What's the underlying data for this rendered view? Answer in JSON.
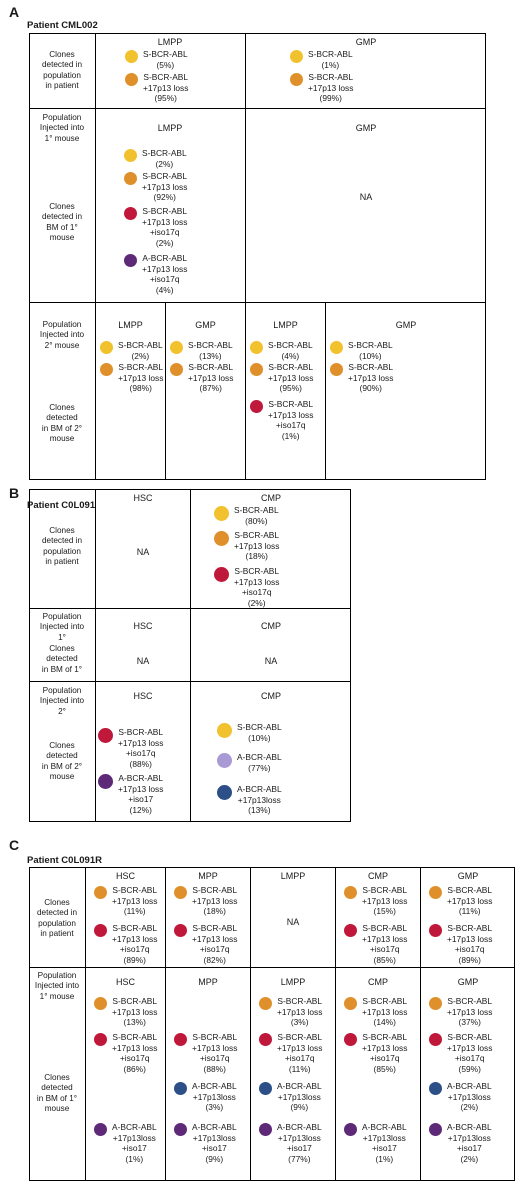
{
  "colors": {
    "S-BCR-ABL": "#f2c12e",
    "S-BCR-ABL+17p13": "#e0902a",
    "S-BCR-ABL+17p13+iso17q": "#c0183a",
    "A-BCR-ABL+17p13+iso17q": "#5e2a78",
    "A-BCR-ABL": "#a99ad6",
    "A-BCR-ABL+17p13": "#2d4f88"
  },
  "panelA": {
    "letter": "A",
    "title": "Patient CML002",
    "row_labels": {
      "clones_patient": [
        "Clones",
        "detected in",
        "population",
        "in patient"
      ],
      "injected_1": [
        "Population",
        "Injected into",
        "1° mouse"
      ],
      "clones_1": [
        "Clones",
        "detected in",
        "BM of 1°",
        "mouse"
      ],
      "injected_2": [
        "Population",
        "Injected into",
        "2° mouse"
      ],
      "clones_2": [
        "Clones",
        "detected",
        "in BM of 2°",
        "mouse"
      ]
    },
    "patient": {
      "lmpp": {
        "label": "LMPP",
        "clones": [
          {
            "color": "S-BCR-ABL",
            "lines": [
              "S-BCR-ABL",
              "(5%)"
            ]
          },
          {
            "color": "S-BCR-ABL+17p13",
            "lines": [
              "S-BCR-ABL",
              "+17p13 loss",
              "(95%)"
            ]
          }
        ]
      },
      "gmp": {
        "label": "GMP",
        "clones": [
          {
            "color": "S-BCR-ABL",
            "lines": [
              "S-BCR-ABL",
              "(1%)"
            ]
          },
          {
            "color": "S-BCR-ABL+17p13",
            "lines": [
              "S-BCR-ABL",
              "+17p13 loss",
              "(99%)"
            ]
          }
        ]
      }
    },
    "mouse1": {
      "lmpp": {
        "label": "LMPP",
        "clones": [
          {
            "color": "S-BCR-ABL",
            "lines": [
              "S-BCR-ABL",
              "(2%)"
            ]
          },
          {
            "color": "S-BCR-ABL+17p13",
            "lines": [
              "S-BCR-ABL",
              "+17p13 loss",
              "(92%)"
            ]
          },
          {
            "color": "S-BCR-ABL+17p13+iso17q",
            "lines": [
              "S-BCR-ABL",
              "+17p13 loss",
              "+iso17q",
              "(2%)"
            ]
          },
          {
            "color": "A-BCR-ABL+17p13+iso17q",
            "lines": [
              "A-BCR-ABL",
              "+17p13 loss",
              "+iso17q",
              "(4%)"
            ]
          }
        ]
      },
      "gmp": {
        "label": "GMP",
        "na": "NA"
      }
    },
    "mouse2": [
      {
        "label": "LMPP",
        "clones": [
          {
            "color": "S-BCR-ABL",
            "lines": [
              "S-BCR-ABL",
              "(2%)"
            ]
          },
          {
            "color": "S-BCR-ABL+17p13",
            "lines": [
              "S-BCR-ABL",
              "+17p13 loss",
              "(98%)"
            ]
          }
        ]
      },
      {
        "label": "GMP",
        "clones": [
          {
            "color": "S-BCR-ABL",
            "lines": [
              "S-BCR-ABL",
              "(13%)"
            ]
          },
          {
            "color": "S-BCR-ABL+17p13",
            "lines": [
              "S-BCR-ABL",
              "+17p13 loss",
              "(87%)"
            ]
          }
        ]
      },
      {
        "label": "LMPP",
        "clones": [
          {
            "color": "S-BCR-ABL",
            "lines": [
              "S-BCR-ABL",
              "(4%)"
            ]
          },
          {
            "color": "S-BCR-ABL+17p13",
            "lines": [
              "S-BCR-ABL",
              "+17p13 loss",
              "(95%)"
            ]
          },
          {
            "color": "S-BCR-ABL+17p13+iso17q",
            "lines": [
              "S-BCR-ABL",
              "+17p13 loss",
              "+iso17q",
              "(1%)"
            ]
          }
        ]
      },
      {
        "label": "GMP",
        "clones": [
          {
            "color": "S-BCR-ABL",
            "lines": [
              "S-BCR-ABL",
              "(10%)"
            ]
          },
          {
            "color": "S-BCR-ABL+17p13",
            "lines": [
              "S-BCR-ABL",
              "+17p13 loss",
              "(90%)"
            ]
          }
        ]
      }
    ]
  },
  "panelB": {
    "letter": "B",
    "title": "Patient C0L091",
    "row_labels": {
      "clones_patient": [
        "Clones",
        "detected in",
        "population",
        "in patient"
      ],
      "injected_1": [
        "Population",
        "Injected into",
        "1°"
      ],
      "clones_1": [
        "Clones",
        "detected",
        "in BM of 1°"
      ],
      "injected_2": [
        "Population",
        "Injected into",
        "2°"
      ],
      "clones_2": [
        "Clones",
        "detected",
        "in BM of 2°",
        "mouse"
      ]
    },
    "patient": {
      "hsc": {
        "label": "HSC",
        "na": "NA"
      },
      "cmp": {
        "label": "CMP",
        "clones": [
          {
            "color": "S-BCR-ABL",
            "lines": [
              "S-BCR-ABL",
              "(80%)"
            ]
          },
          {
            "color": "S-BCR-ABL+17p13",
            "lines": [
              "S-BCR-ABL",
              "+17p13 loss",
              "(18%)"
            ]
          },
          {
            "color": "S-BCR-ABL+17p13+iso17q",
            "lines": [
              "S-BCR-ABL",
              "+17p13 loss",
              "+iso17q",
              "(2%)"
            ]
          }
        ]
      }
    },
    "mouse1": {
      "hsc": {
        "label": "HSC",
        "na": "NA"
      },
      "cmp": {
        "label": "CMP",
        "na": "NA"
      }
    },
    "mouse2": {
      "hsc": {
        "label": "HSC",
        "clones": [
          {
            "color": "S-BCR-ABL+17p13+iso17q",
            "lines": [
              "S-BCR-ABL",
              "+17p13 loss",
              "+iso17q",
              "(88%)"
            ]
          },
          {
            "color": "A-BCR-ABL+17p13+iso17q",
            "lines": [
              "A-BCR-ABL",
              "+17p13 loss",
              "+iso17",
              "(12%)"
            ]
          }
        ]
      },
      "cmp": {
        "label": "CMP",
        "clones": [
          {
            "color": "S-BCR-ABL",
            "lines": [
              "S-BCR-ABL",
              "(10%)"
            ]
          },
          {
            "color": "A-BCR-ABL",
            "lines": [
              "A-BCR-ABL",
              "(77%)"
            ]
          },
          {
            "color": "A-BCR-ABL+17p13",
            "lines": [
              "A-BCR-ABL",
              "+17p13loss",
              "(13%)"
            ]
          }
        ]
      }
    }
  },
  "panelC": {
    "letter": "C",
    "title": "Patient C0L091R",
    "row_labels": {
      "clones_patient": [
        "Clones",
        "detected in",
        "population",
        "in patient"
      ],
      "injected_1": [
        "Population",
        "Injected into",
        "1° mouse"
      ],
      "clones_1": [
        "Clones",
        "detected",
        "in BM of 1°",
        "mouse"
      ]
    },
    "patient": [
      {
        "label": "HSC",
        "clones": [
          {
            "color": "S-BCR-ABL+17p13",
            "lines": [
              "S-BCR-ABL",
              "+17p13 loss",
              "(11%)"
            ]
          },
          {
            "color": "S-BCR-ABL+17p13+iso17q",
            "lines": [
              "S-BCR-ABL",
              "+17p13 loss",
              "+iso17q",
              "(89%)"
            ]
          }
        ]
      },
      {
        "label": "MPP",
        "clones": [
          {
            "color": "S-BCR-ABL+17p13",
            "lines": [
              "S-BCR-ABL",
              "+17p13 loss",
              "(18%)"
            ]
          },
          {
            "color": "S-BCR-ABL+17p13+iso17q",
            "lines": [
              "S-BCR-ABL",
              "+17p13 loss",
              "+iso17q",
              "(82%)"
            ]
          }
        ]
      },
      {
        "label": "LMPP",
        "na": "NA"
      },
      {
        "label": "CMP",
        "clones": [
          {
            "color": "S-BCR-ABL+17p13",
            "lines": [
              "S-BCR-ABL",
              "+17p13 loss",
              "(15%)"
            ]
          },
          {
            "color": "S-BCR-ABL+17p13+iso17q",
            "lines": [
              "S-BCR-ABL",
              "+17p13 loss",
              "+iso17q",
              "(85%)"
            ]
          }
        ]
      },
      {
        "label": "GMP",
        "clones": [
          {
            "color": "S-BCR-ABL+17p13",
            "lines": [
              "S-BCR-ABL",
              "+17p13 loss",
              "(11%)"
            ]
          },
          {
            "color": "S-BCR-ABL+17p13+iso17q",
            "lines": [
              "S-BCR-ABL",
              "+17p13 loss",
              "+iso17q",
              "(89%)"
            ]
          }
        ]
      }
    ],
    "mouse1": [
      {
        "label": "HSC",
        "clones": [
          {
            "color": "S-BCR-ABL+17p13",
            "lines": [
              "S-BCR-ABL",
              "+17p13 loss",
              "(13%)"
            ]
          },
          {
            "color": "S-BCR-ABL+17p13+iso17q",
            "lines": [
              "S-BCR-ABL",
              "+17p13 loss",
              "+iso17q",
              "(86%)"
            ]
          },
          {
            "color": "A-BCR-ABL+17p13+iso17q",
            "lines": [
              "A-BCR-ABL",
              "+17p13loss",
              "+iso17",
              "(1%)"
            ]
          }
        ]
      },
      {
        "label": "MPP",
        "clones": [
          {
            "color": "S-BCR-ABL+17p13+iso17q",
            "lines": [
              "S-BCR-ABL",
              "+17p13 loss",
              "+iso17q",
              "(88%)"
            ]
          },
          {
            "color": "A-BCR-ABL+17p13",
            "lines": [
              "A-BCR-ABL",
              "+17p13loss",
              "(3%)"
            ]
          },
          {
            "color": "A-BCR-ABL+17p13+iso17q",
            "lines": [
              "A-BCR-ABL",
              "+17p13loss",
              "+iso17",
              "(9%)"
            ]
          }
        ]
      },
      {
        "label": "LMPP",
        "clones": [
          {
            "color": "S-BCR-ABL+17p13",
            "lines": [
              "S-BCR-ABL",
              "+17p13 loss",
              "(3%)"
            ]
          },
          {
            "color": "S-BCR-ABL+17p13+iso17q",
            "lines": [
              "S-BCR-ABL",
              "+17p13 loss",
              "+iso17q",
              "(11%)"
            ]
          },
          {
            "color": "A-BCR-ABL+17p13",
            "lines": [
              "A-BCR-ABL",
              "+17p13loss",
              "(9%)"
            ]
          },
          {
            "color": "A-BCR-ABL+17p13+iso17q",
            "lines": [
              "A-BCR-ABL",
              "+17p13loss",
              "+iso17",
              "(77%)"
            ]
          }
        ]
      },
      {
        "label": "CMP",
        "clones": [
          {
            "color": "S-BCR-ABL+17p13",
            "lines": [
              "S-BCR-ABL",
              "+17p13 loss",
              "(14%)"
            ]
          },
          {
            "color": "S-BCR-ABL+17p13+iso17q",
            "lines": [
              "S-BCR-ABL",
              "+17p13 loss",
              "+iso17q",
              "(85%)"
            ]
          },
          {
            "color": "A-BCR-ABL+17p13+iso17q",
            "lines": [
              "A-BCR-ABL",
              "+17p13loss",
              "+iso17",
              "(1%)"
            ]
          }
        ]
      },
      {
        "label": "GMP",
        "clones": [
          {
            "color": "S-BCR-ABL+17p13",
            "lines": [
              "S-BCR-ABL",
              "+17p13 loss",
              "(37%)"
            ]
          },
          {
            "color": "S-BCR-ABL+17p13+iso17q",
            "lines": [
              "S-BCR-ABL",
              "+17p13 loss",
              "+iso17q",
              "(59%)"
            ]
          },
          {
            "color": "A-BCR-ABL+17p13",
            "lines": [
              "A-BCR-ABL",
              "+17p13loss",
              "(2%)"
            ]
          },
          {
            "color": "A-BCR-ABL+17p13+iso17q",
            "lines": [
              "A-BCR-ABL",
              "+17p13loss",
              "+iso17",
              "(2%)"
            ]
          }
        ]
      }
    ]
  }
}
